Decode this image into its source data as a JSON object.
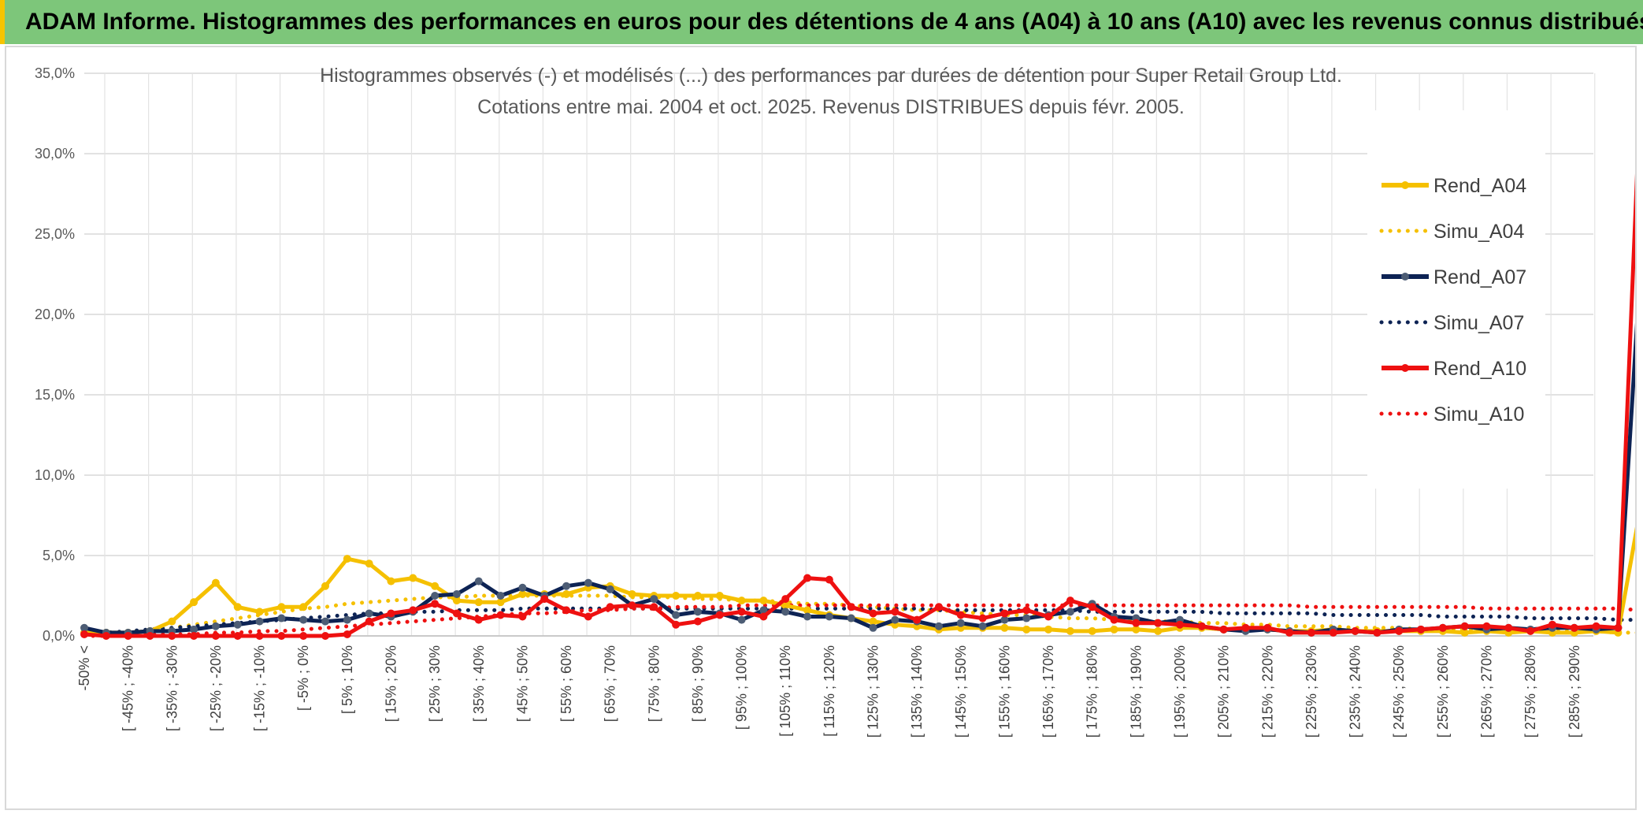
{
  "banner": {
    "title": "ADAM Informe. Histogrammes des performances en euros pour des détentions de 4 ans (A04) à 10 ans (A10) avec les revenus connus distribués"
  },
  "chart_data": {
    "type": "line",
    "title_line1": "Histogrammes observés (-) et modélisés (...) des performances par durées de détention pour Super Retail Group Ltd.",
    "title_line2": "Cotations entre mai. 2004 et oct. 2025. Revenus DISTRIBUES depuis févr. 2005.",
    "xlabel": "",
    "ylabel": "",
    "ylim": [
      0,
      35
    ],
    "yticks": [
      "0,0%",
      "5,0%",
      "10,0%",
      "15,0%",
      "20,0%",
      "25,0%",
      "30,0%",
      "35,0%"
    ],
    "grid": true,
    "legend_position": "right",
    "x_labels": [
      "-50% <",
      "[ -45% ; -40%",
      "[ -35% ; -30%",
      "[ -25% ; -20%",
      "[ -15% ; -10%",
      "[ -5% ; 0%",
      "[ 5% ; 10%",
      "[ 15% ; 20%",
      "[ 25% ; 30%",
      "[ 35% ; 40%",
      "[ 45% ; 50%",
      "[ 55% ; 60%",
      "[ 65% ; 70%",
      "[ 75% ; 80%",
      "[ 85% ; 90%",
      "[ 95% ; 100%",
      "[ 105% ; 110%",
      "[ 115% ; 120%",
      "[ 125% ; 130%",
      "[ 135% ; 140%",
      "[ 145% ; 150%",
      "[ 155% ; 160%",
      "[ 165% ; 170%",
      "[ 175% ; 180%",
      "[ 185% ; 190%",
      "[ 195% ; 200%",
      "[ 205% ; 210%",
      "[ 215% ; 220%",
      "[ 225% ; 230%",
      "[ 235% ; 240%",
      "[ 245% ; 250%",
      "[ 255% ; 260%",
      "[ 265% ; 270%",
      "[ 275% ; 280%",
      "[ 285% ; 290%"
    ],
    "series": [
      {
        "name": "Rend_A04",
        "color": "#f5c000",
        "style": "solid",
        "values": [
          0.2,
          0.2,
          0.2,
          0.3,
          0.9,
          2.1,
          3.3,
          1.8,
          1.5,
          1.8,
          1.8,
          3.1,
          4.8,
          4.5,
          3.4,
          3.6,
          3.1,
          2.2,
          2.1,
          2.1,
          2.6,
          2.6,
          2.6,
          3.0,
          3.1,
          2.6,
          2.5,
          2.5,
          2.5,
          2.5,
          2.2,
          2.2,
          1.9,
          1.6,
          1.3,
          1.1,
          0.9,
          0.7,
          0.6,
          0.4,
          0.5,
          0.5,
          0.5,
          0.4,
          0.4,
          0.3,
          0.3,
          0.4,
          0.4,
          0.3,
          0.5,
          0.5,
          0.4,
          0.4,
          0.4,
          0.3,
          0.3,
          0.4,
          0.3,
          0.3,
          0.3,
          0.3,
          0.3,
          0.2,
          0.3,
          0.2,
          0.3,
          0.2,
          0.2,
          0.3,
          0.2,
          7.8
        ]
      },
      {
        "name": "Simu_A04",
        "color": "#f5c000",
        "style": "dotted",
        "values": [
          0.1,
          0.1,
          0.2,
          0.3,
          0.5,
          0.7,
          0.9,
          1.1,
          1.3,
          1.5,
          1.7,
          1.8,
          2.0,
          2.1,
          2.2,
          2.3,
          2.4,
          2.4,
          2.5,
          2.5,
          2.5,
          2.5,
          2.5,
          2.5,
          2.5,
          2.4,
          2.4,
          2.4,
          2.3,
          2.3,
          2.2,
          2.2,
          2.1,
          2.0,
          2.0,
          1.9,
          1.8,
          1.7,
          1.6,
          1.6,
          1.5,
          1.4,
          1.3,
          1.3,
          1.2,
          1.1,
          1.1,
          1.0,
          1.0,
          0.9,
          0.9,
          0.8,
          0.8,
          0.7,
          0.7,
          0.6,
          0.6,
          0.6,
          0.5,
          0.5,
          0.5,
          0.4,
          0.4,
          0.4,
          0.4,
          0.3,
          0.3,
          0.3,
          0.3,
          0.3,
          0.2,
          0.2
        ]
      },
      {
        "name": "Rend_A07",
        "color": "#0d2354",
        "markerColor": "#4d5d75",
        "style": "solid",
        "values": [
          0.5,
          0.2,
          0.2,
          0.3,
          0.3,
          0.4,
          0.6,
          0.7,
          0.9,
          1.1,
          1.0,
          0.9,
          1.0,
          1.4,
          1.2,
          1.5,
          2.5,
          2.6,
          3.4,
          2.5,
          3.0,
          2.5,
          3.1,
          3.3,
          2.9,
          1.9,
          2.3,
          1.3,
          1.5,
          1.4,
          1.0,
          1.6,
          1.5,
          1.2,
          1.2,
          1.1,
          0.5,
          1.0,
          0.9,
          0.6,
          0.8,
          0.6,
          1.0,
          1.1,
          1.3,
          1.5,
          2.0,
          1.2,
          1.1,
          0.8,
          1.0,
          0.6,
          0.4,
          0.3,
          0.4,
          0.3,
          0.2,
          0.4,
          0.3,
          0.2,
          0.4,
          0.4,
          0.5,
          0.6,
          0.4,
          0.5,
          0.4,
          0.5,
          0.5,
          0.4,
          0.5,
          22.4
        ]
      },
      {
        "name": "Simu_A07",
        "color": "#0d2354",
        "style": "dotted",
        "values": [
          0.2,
          0.2,
          0.3,
          0.4,
          0.5,
          0.6,
          0.7,
          0.8,
          0.9,
          1.0,
          1.1,
          1.2,
          1.3,
          1.4,
          1.4,
          1.5,
          1.5,
          1.6,
          1.6,
          1.6,
          1.7,
          1.7,
          1.7,
          1.7,
          1.7,
          1.7,
          1.7,
          1.7,
          1.7,
          1.7,
          1.7,
          1.7,
          1.7,
          1.7,
          1.7,
          1.7,
          1.7,
          1.7,
          1.7,
          1.6,
          1.6,
          1.6,
          1.6,
          1.6,
          1.6,
          1.6,
          1.5,
          1.5,
          1.5,
          1.5,
          1.5,
          1.5,
          1.4,
          1.4,
          1.4,
          1.4,
          1.4,
          1.3,
          1.3,
          1.3,
          1.3,
          1.3,
          1.2,
          1.2,
          1.2,
          1.2,
          1.1,
          1.1,
          1.1,
          1.1,
          1.0,
          1.0
        ]
      },
      {
        "name": "Rend_A10",
        "color": "#ee1010",
        "style": "solid",
        "values": [
          0.1,
          0.0,
          0.0,
          0.0,
          0.0,
          0.0,
          0.0,
          0.0,
          0.0,
          0.0,
          0.0,
          0.0,
          0.1,
          0.9,
          1.4,
          1.6,
          2.0,
          1.4,
          1.0,
          1.3,
          1.2,
          2.3,
          1.6,
          1.2,
          1.8,
          1.9,
          1.8,
          0.7,
          0.9,
          1.3,
          1.5,
          1.2,
          2.3,
          3.6,
          3.5,
          1.8,
          1.4,
          1.5,
          1.0,
          1.8,
          1.3,
          1.1,
          1.4,
          1.6,
          1.2,
          2.2,
          1.8,
          1.0,
          0.8,
          0.8,
          0.7,
          0.6,
          0.4,
          0.5,
          0.5,
          0.2,
          0.2,
          0.2,
          0.3,
          0.2,
          0.3,
          0.4,
          0.5,
          0.6,
          0.6,
          0.5,
          0.3,
          0.7,
          0.5,
          0.6,
          0.5,
          33.1
        ]
      },
      {
        "name": "Simu_A10",
        "color": "#ee1010",
        "style": "dotted",
        "values": [
          0.0,
          0.0,
          0.0,
          0.1,
          0.1,
          0.1,
          0.2,
          0.2,
          0.3,
          0.3,
          0.4,
          0.5,
          0.6,
          0.7,
          0.8,
          0.9,
          1.0,
          1.1,
          1.2,
          1.3,
          1.4,
          1.4,
          1.5,
          1.6,
          1.6,
          1.7,
          1.7,
          1.8,
          1.8,
          1.8,
          1.9,
          1.9,
          1.9,
          1.9,
          1.9,
          1.9,
          1.9,
          1.9,
          1.9,
          1.9,
          1.9,
          1.9,
          1.9,
          1.9,
          1.9,
          1.9,
          1.9,
          1.9,
          1.9,
          1.9,
          1.9,
          1.9,
          1.9,
          1.9,
          1.9,
          1.9,
          1.8,
          1.8,
          1.8,
          1.8,
          1.8,
          1.8,
          1.8,
          1.8,
          1.7,
          1.7,
          1.7,
          1.7,
          1.7,
          1.7,
          1.7,
          1.6
        ]
      }
    ]
  }
}
